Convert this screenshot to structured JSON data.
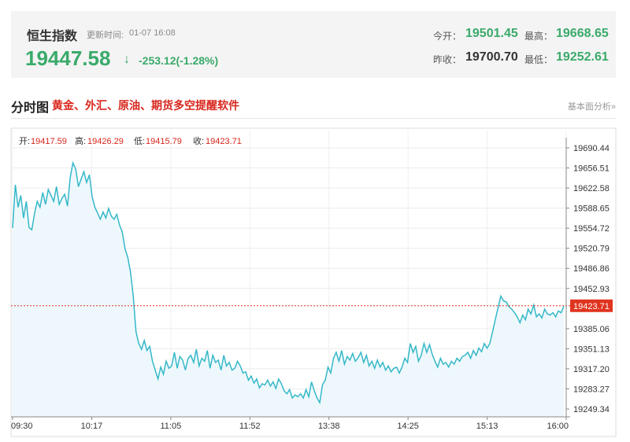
{
  "quote": {
    "name": "恒生指数",
    "update_label": "更新时间:",
    "update_time": "01-07 16:08",
    "price": "19447.58",
    "arrow": "↓",
    "change": "-253.12(-1.28%)",
    "open_label": "今开：",
    "open": "19501.45",
    "high_label": "最高：",
    "high": "19668.65",
    "prev_close_label": "昨收：",
    "prev_close": "19700.70",
    "low_label": "最低：",
    "low": "19252.61",
    "color_down": "#3aaa6a"
  },
  "section": {
    "title": "分时图",
    "promo": "黄金、外汇、原油、期货多空提醒软件",
    "fundamental_link": "基本面分析»"
  },
  "ohlc": {
    "open_label": "开:",
    "open": "19417.59",
    "high_label": "高:",
    "high": "19426.29",
    "low_label": "低:",
    "low": "19415.79",
    "close_label": "收:",
    "close": "19423.71"
  },
  "chart_data": {
    "type": "area",
    "title": "",
    "xlabel": "",
    "ylabel": "",
    "x_ticks": [
      "09:30",
      "10:17",
      "11:05",
      "11:52",
      "13:38",
      "14:25",
      "15:13",
      "16:00"
    ],
    "y_ticks": [
      "19690.44",
      "19656.51",
      "19622.58",
      "19588.65",
      "19554.72",
      "19520.79",
      "19486.86",
      "19452.93",
      "19385.06",
      "19351.13",
      "19317.20",
      "19283.27",
      "19249.34"
    ],
    "ylim": [
      19249.34,
      19690.44
    ],
    "current_value": 19423.71,
    "current_label": "19423.71",
    "grid": true,
    "line_color": "#35b8c8",
    "fill_color": "#eef8fc",
    "current_line_color": "#e0341f",
    "series": [
      {
        "values": [
          19555,
          19628,
          19590,
          19610,
          19572,
          19600,
          19556,
          19552,
          19580,
          19600,
          19590,
          19615,
          19595,
          19620,
          19610,
          19600,
          19625,
          19595,
          19605,
          19612,
          19592,
          19640,
          19665,
          19655,
          19625,
          19638,
          19650,
          19632,
          19645,
          19608,
          19590,
          19580,
          19570,
          19582,
          19572,
          19588,
          19575,
          19570,
          19578,
          19560,
          19548,
          19520,
          19505,
          19480,
          19440,
          19380,
          19360,
          19350,
          19365,
          19348,
          19355,
          19330,
          19315,
          19300,
          19320,
          19308,
          19330,
          19318,
          19322,
          19345,
          19318,
          19338,
          19332,
          19315,
          19335,
          19340,
          19328,
          19350,
          19322,
          19335,
          19330,
          19348,
          19318,
          19340,
          19328,
          19332,
          19315,
          19340,
          19322,
          19328,
          19315,
          19318,
          19330,
          19322,
          19310,
          19312,
          19298,
          19305,
          19293,
          19300,
          19285,
          19292,
          19290,
          19298,
          19288,
          19295,
          19284,
          19300,
          19292,
          19280,
          19275,
          19282,
          19268,
          19273,
          19270,
          19275,
          19268,
          19282,
          19270,
          19295,
          19280,
          19268,
          19260,
          19290,
          19298,
          19320,
          19310,
          19335,
          19345,
          19330,
          19348,
          19325,
          19338,
          19332,
          19343,
          19330,
          19336,
          19345,
          19328,
          19340,
          19322,
          19330,
          19318,
          19332,
          19320,
          19328,
          19315,
          19322,
          19312,
          19318,
          19320,
          19310,
          19320,
          19335,
          19328,
          19360,
          19345,
          19355,
          19330,
          19340,
          19360,
          19345,
          19358,
          19342,
          19330,
          19320,
          19335,
          19325,
          19328,
          19320,
          19330,
          19325,
          19335,
          19330,
          19338,
          19340,
          19345,
          19335,
          19348,
          19340,
          19352,
          19346,
          19360,
          19352,
          19360,
          19380,
          19400,
          19420,
          19440,
          19432,
          19430,
          19422,
          19418,
          19412,
          19405,
          19395,
          19408,
          19400,
          19418,
          19410,
          19425,
          19405,
          19410,
          19403,
          19418,
          19410,
          19408,
          19412,
          19405,
          19415,
          19412,
          19423
        ]
      }
    ]
  }
}
